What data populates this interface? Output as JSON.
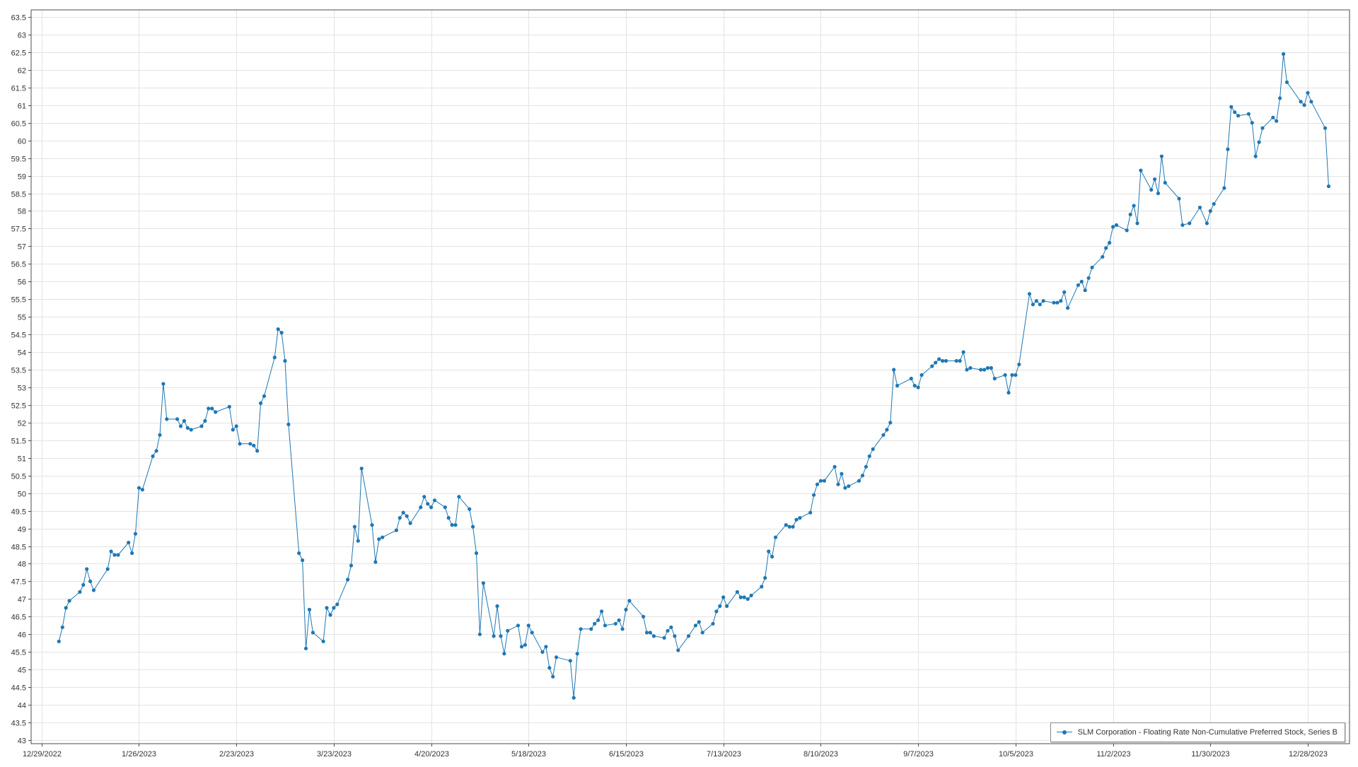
{
  "chart_data": {
    "type": "line",
    "title": "",
    "xlabel": "",
    "ylabel": "",
    "ylim": [
      42.9,
      63.7
    ],
    "y_tick_step": 0.5,
    "x_range": [
      "2022-12-26",
      "2024-01-09"
    ],
    "x_tick_labels": [
      "12/29/2022",
      "1/26/2023",
      "2/23/2023",
      "3/23/2023",
      "4/20/2023",
      "5/18/2023",
      "6/15/2023",
      "7/13/2023",
      "8/10/2023",
      "9/7/2023",
      "10/5/2023",
      "11/2/2023",
      "11/30/2023",
      "12/28/2023"
    ],
    "grid": true,
    "legend_position": "bottom-right",
    "color": "#1f77b4",
    "series": [
      {
        "name": "SLM Corporation - Floating Rate Non-Cumulative Preferred Stock, Series B",
        "points": [
          [
            "2023-01-03",
            45.8
          ],
          [
            "2023-01-04",
            46.2
          ],
          [
            "2023-01-05",
            46.75
          ],
          [
            "2023-01-06",
            46.95
          ],
          [
            "2023-01-09",
            47.2
          ],
          [
            "2023-01-10",
            47.4
          ],
          [
            "2023-01-11",
            47.85
          ],
          [
            "2023-01-12",
            47.5
          ],
          [
            "2023-01-13",
            47.25
          ],
          [
            "2023-01-17",
            47.85
          ],
          [
            "2023-01-18",
            48.35
          ],
          [
            "2023-01-19",
            48.25
          ],
          [
            "2023-01-20",
            48.25
          ],
          [
            "2023-01-23",
            48.6
          ],
          [
            "2023-01-24",
            48.3
          ],
          [
            "2023-01-25",
            48.85
          ],
          [
            "2023-01-26",
            50.15
          ],
          [
            "2023-01-27",
            50.1
          ],
          [
            "2023-01-30",
            51.05
          ],
          [
            "2023-01-31",
            51.2
          ],
          [
            "2023-02-01",
            51.65
          ],
          [
            "2023-02-02",
            53.1
          ],
          [
            "2023-02-03",
            52.1
          ],
          [
            "2023-02-06",
            52.1
          ],
          [
            "2023-02-07",
            51.9
          ],
          [
            "2023-02-08",
            52.05
          ],
          [
            "2023-02-09",
            51.85
          ],
          [
            "2023-02-10",
            51.8
          ],
          [
            "2023-02-13",
            51.9
          ],
          [
            "2023-02-14",
            52.05
          ],
          [
            "2023-02-15",
            52.4
          ],
          [
            "2023-02-16",
            52.4
          ],
          [
            "2023-02-17",
            52.3
          ],
          [
            "2023-02-21",
            52.45
          ],
          [
            "2023-02-22",
            51.8
          ],
          [
            "2023-02-23",
            51.9
          ],
          [
            "2023-02-24",
            51.4
          ],
          [
            "2023-02-27",
            51.4
          ],
          [
            "2023-02-28",
            51.35
          ],
          [
            "2023-03-01",
            51.2
          ],
          [
            "2023-03-02",
            52.55
          ],
          [
            "2023-03-03",
            52.75
          ],
          [
            "2023-03-06",
            53.85
          ],
          [
            "2023-03-07",
            54.65
          ],
          [
            "2023-03-08",
            54.55
          ],
          [
            "2023-03-09",
            53.75
          ],
          [
            "2023-03-10",
            51.95
          ],
          [
            "2023-03-13",
            48.3
          ],
          [
            "2023-03-14",
            48.1
          ],
          [
            "2023-03-15",
            45.6
          ],
          [
            "2023-03-16",
            46.7
          ],
          [
            "2023-03-17",
            46.05
          ],
          [
            "2023-03-20",
            45.8
          ],
          [
            "2023-03-21",
            46.75
          ],
          [
            "2023-03-22",
            46.55
          ],
          [
            "2023-03-23",
            46.75
          ],
          [
            "2023-03-24",
            46.85
          ],
          [
            "2023-03-27",
            47.55
          ],
          [
            "2023-03-28",
            47.95
          ],
          [
            "2023-03-29",
            49.05
          ],
          [
            "2023-03-30",
            48.65
          ],
          [
            "2023-03-31",
            50.7
          ],
          [
            "2023-04-03",
            49.1
          ],
          [
            "2023-04-04",
            48.05
          ],
          [
            "2023-04-05",
            48.7
          ],
          [
            "2023-04-06",
            48.75
          ],
          [
            "2023-04-10",
            48.95
          ],
          [
            "2023-04-11",
            49.3
          ],
          [
            "2023-04-12",
            49.45
          ],
          [
            "2023-04-13",
            49.35
          ],
          [
            "2023-04-14",
            49.15
          ],
          [
            "2023-04-17",
            49.6
          ],
          [
            "2023-04-18",
            49.9
          ],
          [
            "2023-04-19",
            49.7
          ],
          [
            "2023-04-20",
            49.6
          ],
          [
            "2023-04-21",
            49.8
          ],
          [
            "2023-04-24",
            49.6
          ],
          [
            "2023-04-25",
            49.3
          ],
          [
            "2023-04-26",
            49.1
          ],
          [
            "2023-04-27",
            49.1
          ],
          [
            "2023-04-28",
            49.9
          ],
          [
            "2023-05-01",
            49.55
          ],
          [
            "2023-05-02",
            49.05
          ],
          [
            "2023-05-03",
            48.3
          ],
          [
            "2023-05-04",
            46.0
          ],
          [
            "2023-05-05",
            47.45
          ],
          [
            "2023-05-08",
            45.95
          ],
          [
            "2023-05-09",
            46.8
          ],
          [
            "2023-05-10",
            45.95
          ],
          [
            "2023-05-11",
            45.45
          ],
          [
            "2023-05-12",
            46.1
          ],
          [
            "2023-05-15",
            46.25
          ],
          [
            "2023-05-16",
            45.65
          ],
          [
            "2023-05-17",
            45.7
          ],
          [
            "2023-05-18",
            46.25
          ],
          [
            "2023-05-19",
            46.05
          ],
          [
            "2023-05-22",
            45.5
          ],
          [
            "2023-05-23",
            45.65
          ],
          [
            "2023-05-24",
            45.05
          ],
          [
            "2023-05-25",
            44.8
          ],
          [
            "2023-05-26",
            45.35
          ],
          [
            "2023-05-30",
            45.25
          ],
          [
            "2023-05-31",
            44.2
          ],
          [
            "2023-06-01",
            45.45
          ],
          [
            "2023-06-02",
            46.15
          ],
          [
            "2023-06-05",
            46.15
          ],
          [
            "2023-06-06",
            46.3
          ],
          [
            "2023-06-07",
            46.4
          ],
          [
            "2023-06-08",
            46.65
          ],
          [
            "2023-06-09",
            46.25
          ],
          [
            "2023-06-12",
            46.3
          ],
          [
            "2023-06-13",
            46.4
          ],
          [
            "2023-06-14",
            46.15
          ],
          [
            "2023-06-15",
            46.7
          ],
          [
            "2023-06-16",
            46.95
          ],
          [
            "2023-06-20",
            46.5
          ],
          [
            "2023-06-21",
            46.05
          ],
          [
            "2023-06-22",
            46.05
          ],
          [
            "2023-06-23",
            45.95
          ],
          [
            "2023-06-26",
            45.9
          ],
          [
            "2023-06-27",
            46.1
          ],
          [
            "2023-06-28",
            46.2
          ],
          [
            "2023-06-29",
            45.95
          ],
          [
            "2023-06-30",
            45.55
          ],
          [
            "2023-07-03",
            45.95
          ],
          [
            "2023-07-05",
            46.25
          ],
          [
            "2023-07-06",
            46.35
          ],
          [
            "2023-07-07",
            46.05
          ],
          [
            "2023-07-10",
            46.3
          ],
          [
            "2023-07-11",
            46.65
          ],
          [
            "2023-07-12",
            46.8
          ],
          [
            "2023-07-13",
            47.05
          ],
          [
            "2023-07-14",
            46.8
          ],
          [
            "2023-07-17",
            47.2
          ],
          [
            "2023-07-18",
            47.05
          ],
          [
            "2023-07-19",
            47.05
          ],
          [
            "2023-07-20",
            47.0
          ],
          [
            "2023-07-21",
            47.1
          ],
          [
            "2023-07-24",
            47.35
          ],
          [
            "2023-07-25",
            47.6
          ],
          [
            "2023-07-26",
            48.35
          ],
          [
            "2023-07-27",
            48.2
          ],
          [
            "2023-07-28",
            48.75
          ],
          [
            "2023-07-31",
            49.1
          ],
          [
            "2023-08-01",
            49.05
          ],
          [
            "2023-08-02",
            49.05
          ],
          [
            "2023-08-03",
            49.25
          ],
          [
            "2023-08-04",
            49.3
          ],
          [
            "2023-08-07",
            49.45
          ],
          [
            "2023-08-08",
            49.95
          ],
          [
            "2023-08-09",
            50.25
          ],
          [
            "2023-08-10",
            50.35
          ],
          [
            "2023-08-11",
            50.35
          ],
          [
            "2023-08-14",
            50.75
          ],
          [
            "2023-08-15",
            50.25
          ],
          [
            "2023-08-16",
            50.55
          ],
          [
            "2023-08-17",
            50.15
          ],
          [
            "2023-08-18",
            50.2
          ],
          [
            "2023-08-21",
            50.35
          ],
          [
            "2023-08-22",
            50.5
          ],
          [
            "2023-08-23",
            50.75
          ],
          [
            "2023-08-24",
            51.05
          ],
          [
            "2023-08-25",
            51.25
          ],
          [
            "2023-08-28",
            51.65
          ],
          [
            "2023-08-29",
            51.8
          ],
          [
            "2023-08-30",
            52.0
          ],
          [
            "2023-08-31",
            53.5
          ],
          [
            "2023-09-01",
            53.05
          ],
          [
            "2023-09-05",
            53.25
          ],
          [
            "2023-09-06",
            53.05
          ],
          [
            "2023-09-07",
            53.0
          ],
          [
            "2023-09-08",
            53.35
          ],
          [
            "2023-09-11",
            53.6
          ],
          [
            "2023-09-12",
            53.7
          ],
          [
            "2023-09-13",
            53.8
          ],
          [
            "2023-09-14",
            53.75
          ],
          [
            "2023-09-15",
            53.75
          ],
          [
            "2023-09-18",
            53.75
          ],
          [
            "2023-09-19",
            53.75
          ],
          [
            "2023-09-20",
            54.0
          ],
          [
            "2023-09-21",
            53.5
          ],
          [
            "2023-09-22",
            53.55
          ],
          [
            "2023-09-25",
            53.5
          ],
          [
            "2023-09-26",
            53.5
          ],
          [
            "2023-09-27",
            53.55
          ],
          [
            "2023-09-28",
            53.55
          ],
          [
            "2023-09-29",
            53.25
          ],
          [
            "2023-10-02",
            53.35
          ],
          [
            "2023-10-03",
            52.85
          ],
          [
            "2023-10-04",
            53.35
          ],
          [
            "2023-10-05",
            53.35
          ],
          [
            "2023-10-06",
            53.65
          ],
          [
            "2023-10-09",
            55.65
          ],
          [
            "2023-10-10",
            55.35
          ],
          [
            "2023-10-11",
            55.45
          ],
          [
            "2023-10-12",
            55.35
          ],
          [
            "2023-10-13",
            55.45
          ],
          [
            "2023-10-16",
            55.4
          ],
          [
            "2023-10-17",
            55.4
          ],
          [
            "2023-10-18",
            55.45
          ],
          [
            "2023-10-19",
            55.7
          ],
          [
            "2023-10-20",
            55.25
          ],
          [
            "2023-10-23",
            55.9
          ],
          [
            "2023-10-24",
            56.0
          ],
          [
            "2023-10-25",
            55.75
          ],
          [
            "2023-10-26",
            56.1
          ],
          [
            "2023-10-27",
            56.4
          ],
          [
            "2023-10-30",
            56.7
          ],
          [
            "2023-10-31",
            56.95
          ],
          [
            "2023-11-01",
            57.1
          ],
          [
            "2023-11-02",
            57.55
          ],
          [
            "2023-11-03",
            57.6
          ],
          [
            "2023-11-06",
            57.45
          ],
          [
            "2023-11-07",
            57.9
          ],
          [
            "2023-11-08",
            58.15
          ],
          [
            "2023-11-09",
            57.65
          ],
          [
            "2023-11-10",
            59.15
          ],
          [
            "2023-11-13",
            58.6
          ],
          [
            "2023-11-14",
            58.9
          ],
          [
            "2023-11-15",
            58.5
          ],
          [
            "2023-11-16",
            59.55
          ],
          [
            "2023-11-17",
            58.8
          ],
          [
            "2023-11-21",
            58.35
          ],
          [
            "2023-11-22",
            57.6
          ],
          [
            "2023-11-24",
            57.65
          ],
          [
            "2023-11-27",
            58.1
          ],
          [
            "2023-11-29",
            57.65
          ],
          [
            "2023-11-30",
            58.0
          ],
          [
            "2023-12-01",
            58.2
          ],
          [
            "2023-12-04",
            58.65
          ],
          [
            "2023-12-05",
            59.75
          ],
          [
            "2023-12-06",
            60.95
          ],
          [
            "2023-12-07",
            60.8
          ],
          [
            "2023-12-08",
            60.7
          ],
          [
            "2023-12-11",
            60.75
          ],
          [
            "2023-12-12",
            60.5
          ],
          [
            "2023-12-13",
            59.55
          ],
          [
            "2023-12-14",
            59.95
          ],
          [
            "2023-12-15",
            60.35
          ],
          [
            "2023-12-18",
            60.65
          ],
          [
            "2023-12-19",
            60.55
          ],
          [
            "2023-12-20",
            61.2
          ],
          [
            "2023-12-21",
            62.45
          ],
          [
            "2023-12-22",
            61.65
          ],
          [
            "2023-12-26",
            61.1
          ],
          [
            "2023-12-27",
            61.0
          ],
          [
            "2023-12-28",
            61.35
          ],
          [
            "2023-12-29",
            61.1
          ],
          [
            "2024-01-02",
            60.35
          ],
          [
            "2024-01-03",
            58.7
          ]
        ]
      }
    ]
  }
}
